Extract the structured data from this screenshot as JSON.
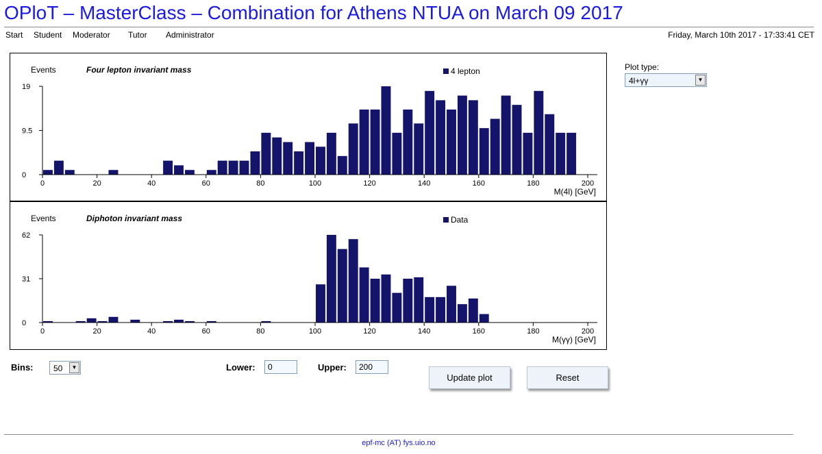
{
  "page": {
    "title": "OPloT – MasterClass – Combination for Athens NTUA on March 09 2017",
    "datetime": "Friday, March 10th 2017 - 17:33:41 CET",
    "footer": "epf-mc (AT) fys.uio.no"
  },
  "nav": {
    "items": [
      "Start",
      "Student",
      "Moderator",
      "Tutor",
      "Administrator"
    ]
  },
  "controls": {
    "plot_type_label": "Plot type:",
    "plot_type_value": "4l+γγ",
    "bins_label": "Bins:",
    "bins_value": "50",
    "lower_label": "Lower:",
    "lower_value": "0",
    "upper_label": "Upper:",
    "upper_value": "200",
    "update_button": "Update plot",
    "reset_button": "Reset"
  },
  "colors": {
    "bar": "#14146b",
    "title": "#1a1ae0"
  },
  "chart_data": [
    {
      "type": "bar",
      "title": "Four lepton invariant mass",
      "ylabel": "Events",
      "xlabel": "M(4l) [GeV]",
      "legend": "4 lepton",
      "legend_position": "top-right",
      "bin_width": 4,
      "x_start": 0,
      "xlim": [
        0,
        200
      ],
      "ylim": [
        0,
        19
      ],
      "y_ticks": [
        "0",
        "9.5",
        "19"
      ],
      "x_ticks": [
        "0",
        "20",
        "40",
        "60",
        "80",
        "100",
        "120",
        "140",
        "160",
        "180",
        "200"
      ],
      "values": [
        1,
        3,
        1,
        0,
        0,
        0,
        1,
        0,
        0,
        0,
        0,
        3,
        2,
        1,
        0,
        1,
        3,
        3,
        3,
        5,
        9,
        8,
        7,
        5,
        7,
        6,
        9,
        4,
        11,
        14,
        14,
        19,
        9,
        14,
        11,
        18,
        16,
        14,
        17,
        16,
        10,
        12,
        17,
        15,
        9,
        18,
        13,
        9,
        9,
        0
      ]
    },
    {
      "type": "bar",
      "title": "Diphoton invariant mass",
      "ylabel": "Events",
      "xlabel": "M(γγ) [GeV]",
      "legend": "Data",
      "legend_position": "top-right",
      "bin_width": 4,
      "x_start": 0,
      "xlim": [
        0,
        200
      ],
      "ylim": [
        0,
        62
      ],
      "y_ticks": [
        "0",
        "31",
        "62"
      ],
      "x_ticks": [
        "0",
        "20",
        "40",
        "60",
        "80",
        "100",
        "120",
        "140",
        "160",
        "180",
        "200"
      ],
      "values": [
        1,
        0,
        0,
        1,
        3,
        1,
        4,
        0,
        2,
        0,
        0,
        1,
        2,
        1,
        0,
        1,
        0,
        0,
        0,
        0,
        1,
        0,
        0,
        0,
        0,
        27,
        62,
        52,
        59,
        39,
        31,
        34,
        21,
        31,
        32,
        18,
        18,
        26,
        13,
        17,
        6,
        0,
        0,
        0,
        0,
        0,
        0,
        0,
        0,
        0
      ]
    }
  ]
}
